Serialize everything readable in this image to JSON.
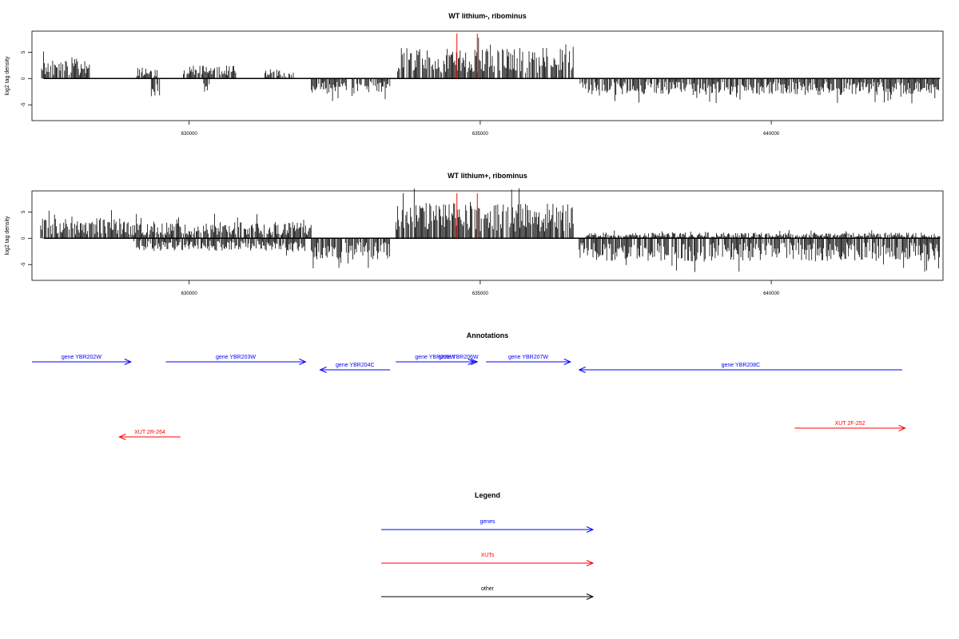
{
  "chart_data": [
    {
      "type": "bar",
      "title": "WT lithium-, ribominus",
      "ylabel": "log2 tag density",
      "xlim": [
        627300,
        642950
      ],
      "ylim": [
        -8,
        9
      ],
      "y_ticks": [
        -5,
        0,
        5
      ],
      "x_ticks": [
        630000,
        635000,
        640000
      ],
      "x_tick_labels": [
        "630000",
        "635000",
        "640000"
      ],
      "grid": false,
      "positive_strand": [
        {
          "range": [
            627450,
            628300
          ],
          "level": 2.6
        },
        {
          "range": [
            629100,
            629450
          ],
          "level": 1.6
        },
        {
          "range": [
            629900,
            630800
          ],
          "level": 1.8
        },
        {
          "range": [
            631300,
            631800
          ],
          "level": 1.4
        },
        {
          "range": [
            633550,
            636600
          ],
          "level": 4.3
        }
      ],
      "negative_strand": [
        {
          "range": [
            629350,
            629500
          ],
          "level": -2.5
        },
        {
          "range": [
            630250,
            630350
          ],
          "level": -2.0
        },
        {
          "range": [
            632100,
            632700
          ],
          "level": -2.2
        },
        {
          "range": [
            632800,
            633450
          ],
          "level": -2.2
        },
        {
          "range": [
            636700,
            642900
          ],
          "level": -2.4
        }
      ],
      "markers": [
        634600,
        634950
      ],
      "marker_color": "#ff0000"
    },
    {
      "type": "bar",
      "title": "WT lithium+, ribominus",
      "ylabel": "log2 tag density",
      "xlim": [
        627300,
        642950
      ],
      "ylim": [
        -8,
        9
      ],
      "y_ticks": [
        -5,
        0,
        5
      ],
      "x_ticks": [
        630000,
        635000,
        640000
      ],
      "x_tick_labels": [
        "630000",
        "635000",
        "640000"
      ],
      "grid": false,
      "positive_strand": [
        {
          "range": [
            627450,
            629000
          ],
          "level": 2.8
        },
        {
          "range": [
            629000,
            632100
          ],
          "level": 2.3
        },
        {
          "range": [
            633550,
            636600
          ],
          "level": 5.0
        },
        {
          "range": [
            636800,
            642900
          ],
          "level": 0.8
        }
      ],
      "negative_strand": [
        {
          "range": [
            629050,
            632000
          ],
          "level": -1.8
        },
        {
          "range": [
            632100,
            633450
          ],
          "level": -3.0
        },
        {
          "range": [
            636700,
            642900
          ],
          "level": -3.2
        }
      ],
      "markers": [
        634600,
        634950
      ],
      "marker_color": "#ff0000"
    }
  ],
  "annotations": {
    "title": "Annotations",
    "features": [
      {
        "label": "gene YBR202W",
        "start": 627300,
        "end": 629000,
        "strand": "+",
        "kind": "gene",
        "row": 0
      },
      {
        "label": "gene YBR203W",
        "start": 629600,
        "end": 632000,
        "strand": "+",
        "kind": "gene",
        "row": 0
      },
      {
        "label": "gene YBR204C",
        "start": 632250,
        "end": 633450,
        "strand": "-",
        "kind": "gene",
        "row": 1
      },
      {
        "label": "gene YBR205W",
        "start": 633550,
        "end": 634900,
        "strand": "+",
        "kind": "gene",
        "row": 0
      },
      {
        "label": "gene YBR206W",
        "start": 634300,
        "end": 634950,
        "strand": "+",
        "kind": "gene",
        "row": 0
      },
      {
        "label": "gene YBR207W",
        "start": 635100,
        "end": 636550,
        "strand": "+",
        "kind": "gene",
        "row": 0
      },
      {
        "label": "gene YBR208C",
        "start": 636700,
        "end": 642250,
        "strand": "-",
        "kind": "gene",
        "row": 1
      },
      {
        "label": "XUT 2R-264",
        "start": 628800,
        "end": 629850,
        "strand": "-",
        "kind": "xut",
        "row": 3
      },
      {
        "label": "XUT 2F-252",
        "start": 640400,
        "end": 642300,
        "strand": "+",
        "kind": "xut",
        "row": 2
      }
    ]
  },
  "legend": {
    "title": "Legend",
    "items": [
      {
        "label": "genes",
        "color": "#0000ff"
      },
      {
        "label": "XUTs",
        "color": "#ff0000"
      },
      {
        "label": "other",
        "color": "#000000"
      }
    ]
  }
}
